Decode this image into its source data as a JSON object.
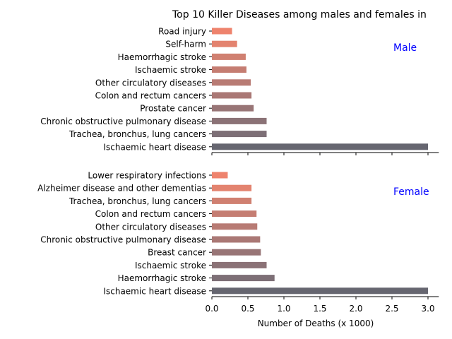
{
  "chart_data": {
    "type": "bar",
    "orientation": "horizontal",
    "title": "Top 10 Killer Diseases among males and females in",
    "xlabel": "Number of Deaths (x 1000)",
    "xlim": [
      0,
      3.15
    ],
    "x_ticks": [
      "0.0",
      "0.5",
      "1.0",
      "1.5",
      "2.0",
      "2.5",
      "3.0"
    ],
    "legend_placement": "none",
    "grid": false,
    "panels": [
      {
        "name": "Male",
        "categories": [
          "Road injury",
          "Self-harm",
          "Haemorrhagic stroke",
          "Ischaemic stroke",
          "Other circulatory diseases",
          "Colon and rectum cancers",
          "Prostate cancer",
          "Chronic obstructive pulmonary disease",
          "Trachea, bronchus, lung cancers",
          "Ischaemic heart disease"
        ],
        "values": [
          0.28,
          0.35,
          0.47,
          0.48,
          0.54,
          0.55,
          0.58,
          0.76,
          0.76,
          3.0
        ],
        "colors": [
          "#ee836d",
          "#e3836f",
          "#d08071",
          "#c57d72",
          "#b87b74",
          "#aa7875",
          "#987576",
          "#8b7276",
          "#7d6f76",
          "#666670"
        ]
      },
      {
        "name": "Female",
        "categories": [
          "Lower respiratory infections",
          "Alzheimer disease and other dementias",
          "Trachea, bronchus, lung cancers",
          "Colon and rectum cancers",
          "Other circulatory diseases",
          "Chronic obstructive pulmonary disease",
          "Breast cancer",
          "Ischaemic stroke",
          "Haemorrhagic stroke",
          "Ischaemic heart disease"
        ],
        "values": [
          0.22,
          0.55,
          0.55,
          0.62,
          0.63,
          0.67,
          0.68,
          0.76,
          0.87,
          3.0
        ],
        "colors": [
          "#ee836d",
          "#e3836f",
          "#d08071",
          "#c57d72",
          "#b87b74",
          "#aa7875",
          "#987576",
          "#8b7276",
          "#7d6f76",
          "#666670"
        ]
      }
    ]
  },
  "colors": {
    "panel_label": "#0000ff",
    "axis": "#000000",
    "text": "#000000"
  }
}
